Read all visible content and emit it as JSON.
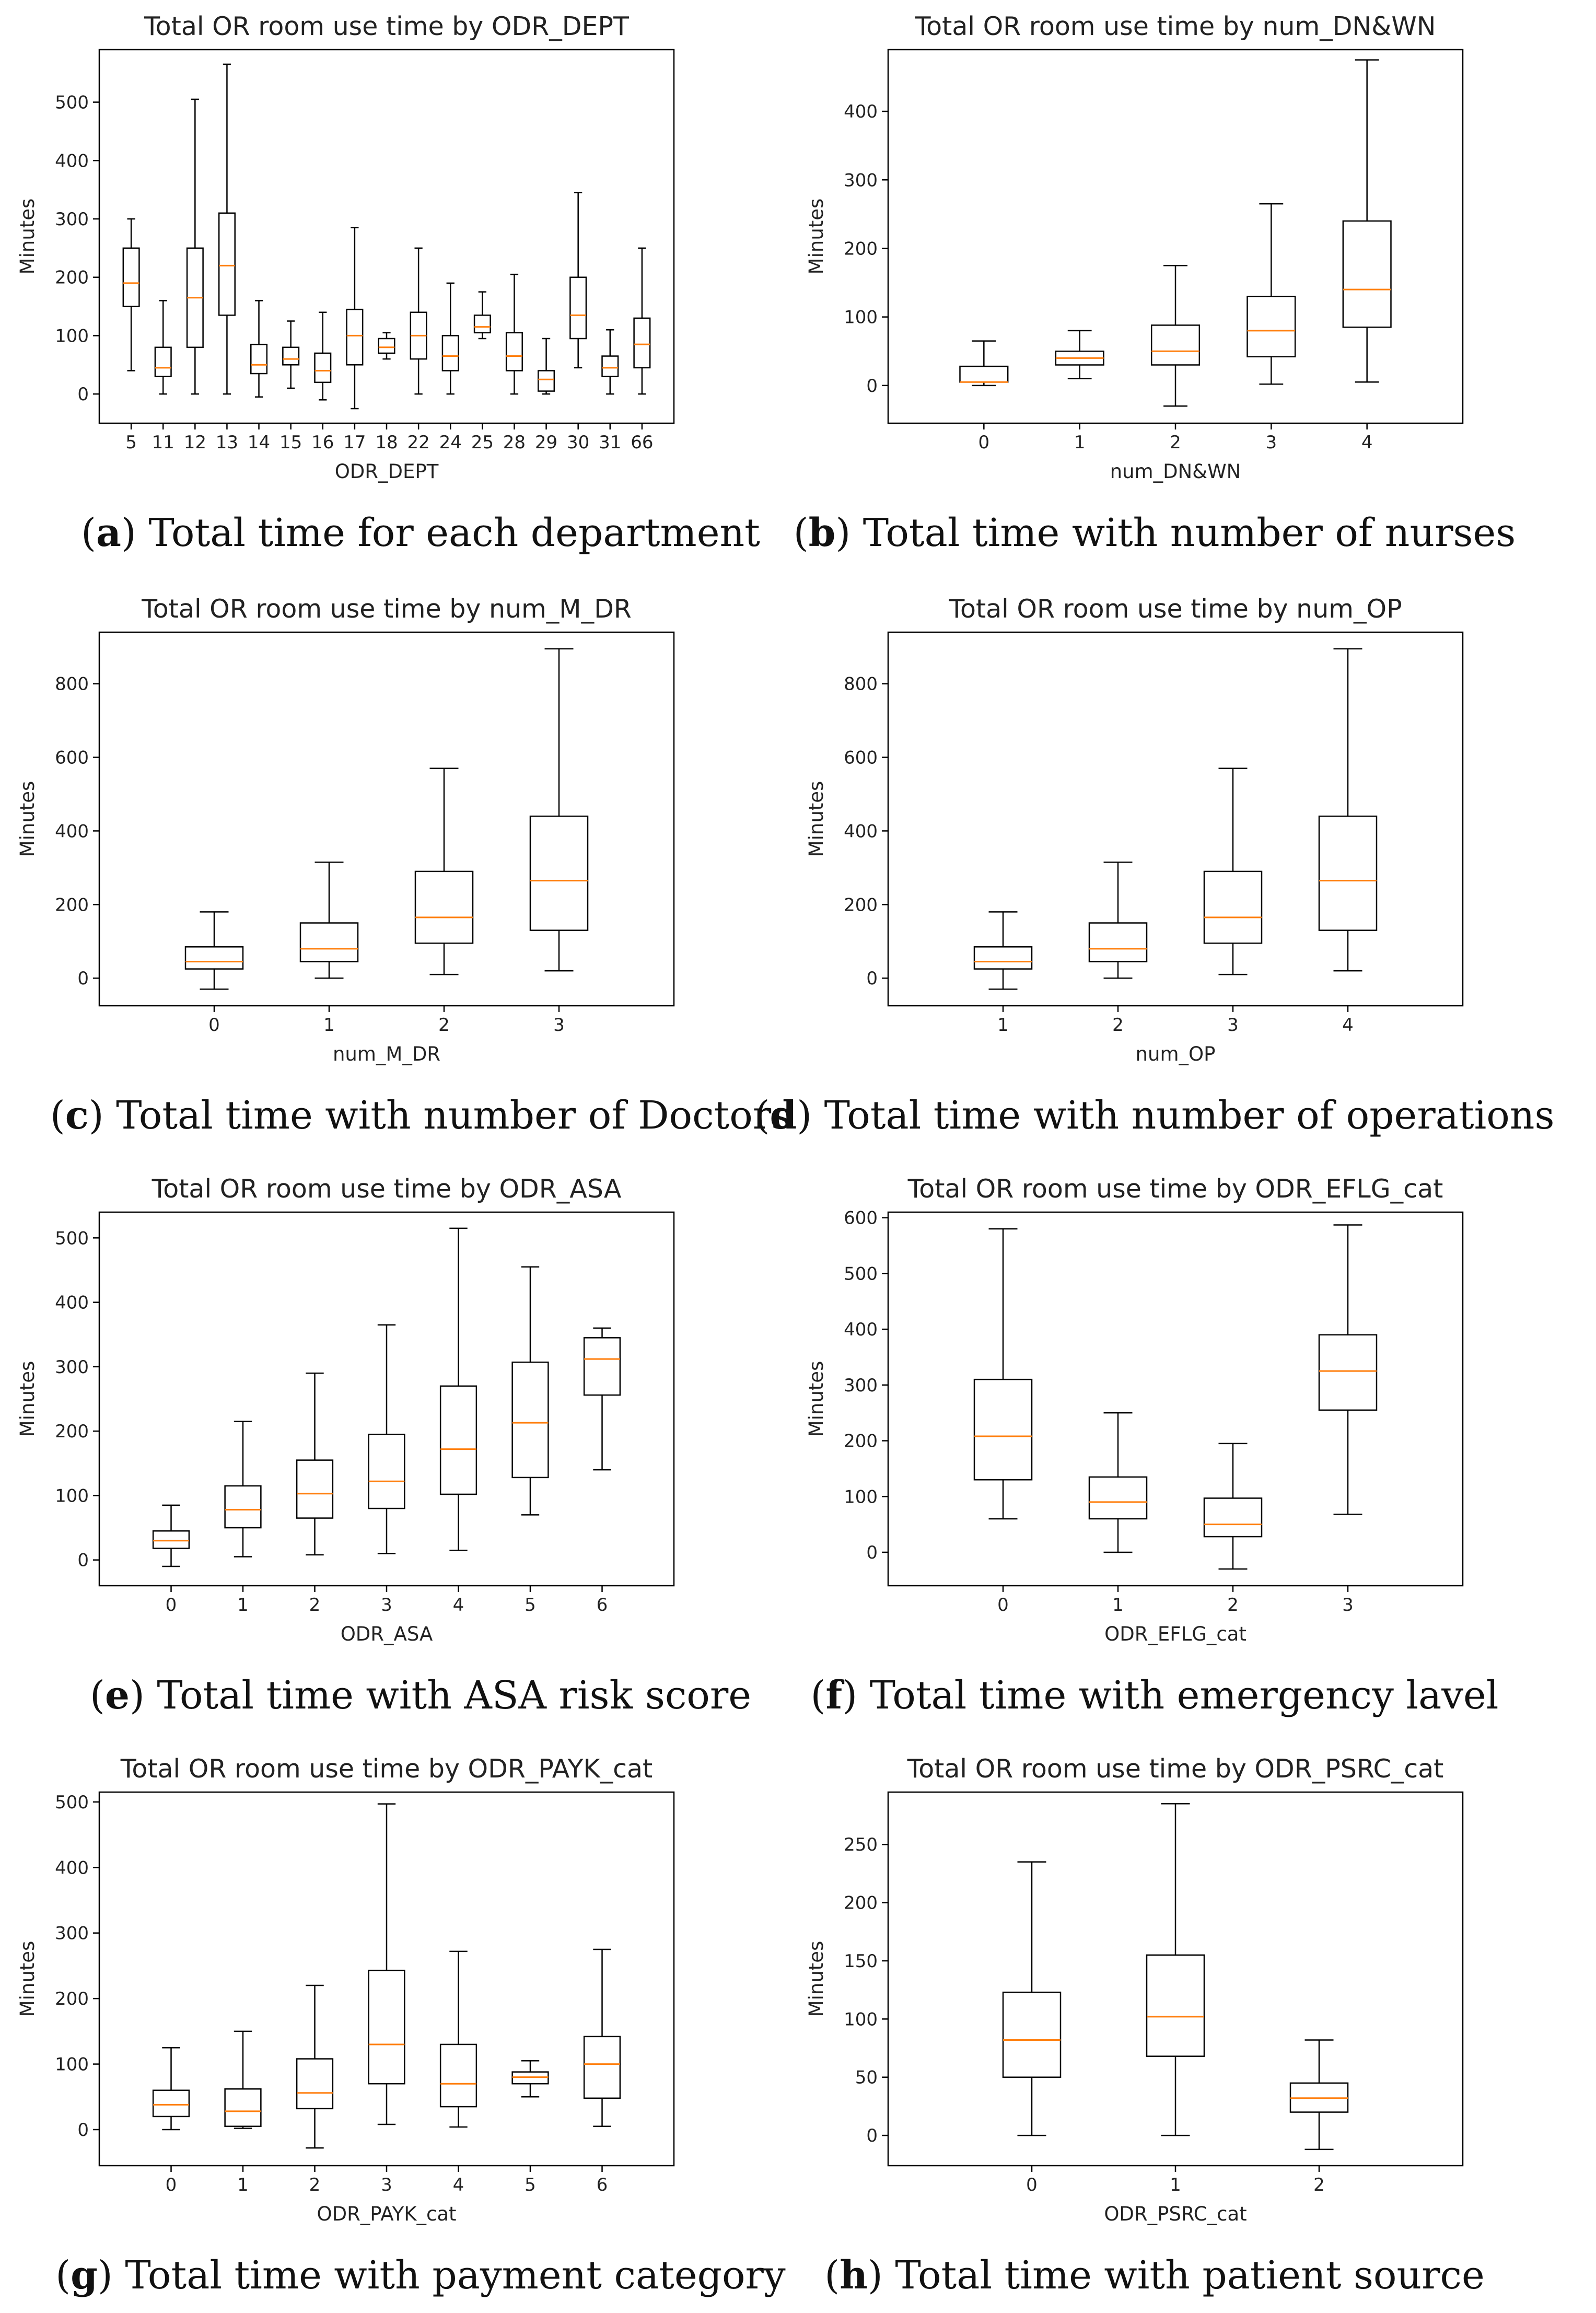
{
  "colors": {
    "box_line": "#000000",
    "median": "#ff7f0e",
    "frame": "#000000",
    "background": "#ffffff"
  },
  "chart_data": [
    {
      "id": "a",
      "type": "box",
      "title": "Total OR room use time by ODR_DEPT",
      "xlabel": "ODR_DEPT",
      "ylabel": "Minutes",
      "ylim": [
        -50,
        590
      ],
      "yticks": [
        0,
        100,
        200,
        300,
        400,
        500
      ],
      "categories": [
        "5",
        "11",
        "12",
        "13",
        "14",
        "15",
        "16",
        "17",
        "18",
        "22",
        "24",
        "25",
        "28",
        "29",
        "30",
        "31",
        "66"
      ],
      "boxes": [
        {
          "whisker_low": 40,
          "q1": 150,
          "median": 190,
          "q3": 250,
          "whisker_high": 300
        },
        {
          "whisker_low": 0,
          "q1": 30,
          "median": 45,
          "q3": 80,
          "whisker_high": 160
        },
        {
          "whisker_low": 0,
          "q1": 80,
          "median": 165,
          "q3": 250,
          "whisker_high": 505
        },
        {
          "whisker_low": 0,
          "q1": 135,
          "median": 220,
          "q3": 310,
          "whisker_high": 565
        },
        {
          "whisker_low": -5,
          "q1": 35,
          "median": 50,
          "q3": 85,
          "whisker_high": 160
        },
        {
          "whisker_low": 10,
          "q1": 50,
          "median": 60,
          "q3": 80,
          "whisker_high": 125
        },
        {
          "whisker_low": -10,
          "q1": 20,
          "median": 40,
          "q3": 70,
          "whisker_high": 140
        },
        {
          "whisker_low": -25,
          "q1": 50,
          "median": 100,
          "q3": 145,
          "whisker_high": 285
        },
        {
          "whisker_low": 60,
          "q1": 70,
          "median": 80,
          "q3": 95,
          "whisker_high": 105
        },
        {
          "whisker_low": 0,
          "q1": 60,
          "median": 100,
          "q3": 140,
          "whisker_high": 250
        },
        {
          "whisker_low": 0,
          "q1": 40,
          "median": 65,
          "q3": 100,
          "whisker_high": 190
        },
        {
          "whisker_low": 95,
          "q1": 105,
          "median": 115,
          "q3": 135,
          "whisker_high": 175
        },
        {
          "whisker_low": 0,
          "q1": 40,
          "median": 65,
          "q3": 105,
          "whisker_high": 205
        },
        {
          "whisker_low": 0,
          "q1": 5,
          "median": 25,
          "q3": 40,
          "whisker_high": 95
        },
        {
          "whisker_low": 45,
          "q1": 95,
          "median": 135,
          "q3": 200,
          "whisker_high": 345
        },
        {
          "whisker_low": 0,
          "q1": 30,
          "median": 45,
          "q3": 65,
          "whisker_high": 110
        },
        {
          "whisker_low": 0,
          "q1": 45,
          "median": 85,
          "q3": 130,
          "whisker_high": 250
        }
      ],
      "caption": {
        "letter": "a",
        "text": "Total time for each department"
      }
    },
    {
      "id": "b",
      "type": "box",
      "title": "Total OR room use time by num_DN&WN",
      "xlabel": "num_DN&WN",
      "ylabel": "Minutes",
      "ylim": [
        -55,
        490
      ],
      "yticks": [
        0,
        100,
        200,
        300,
        400
      ],
      "categories": [
        "0",
        "1",
        "2",
        "3",
        "4"
      ],
      "boxes": [
        {
          "whisker_low": 0,
          "q1": 5,
          "median": 5,
          "q3": 28,
          "whisker_high": 65
        },
        {
          "whisker_low": 10,
          "q1": 30,
          "median": 40,
          "q3": 50,
          "whisker_high": 80
        },
        {
          "whisker_low": -30,
          "q1": 30,
          "median": 50,
          "q3": 88,
          "whisker_high": 175
        },
        {
          "whisker_low": 2,
          "q1": 42,
          "median": 80,
          "q3": 130,
          "whisker_high": 265
        },
        {
          "whisker_low": 5,
          "q1": 85,
          "median": 140,
          "q3": 240,
          "whisker_high": 475
        }
      ],
      "caption": {
        "letter": "b",
        "text": "Total time with number of nurses"
      }
    },
    {
      "id": "c",
      "type": "box",
      "title": "Total OR room use time by num_M_DR",
      "xlabel": "num_M_DR",
      "ylabel": "Minutes",
      "ylim": [
        -75,
        940
      ],
      "yticks": [
        0,
        200,
        400,
        600,
        800
      ],
      "categories": [
        "0",
        "1",
        "2",
        "3"
      ],
      "boxes": [
        {
          "whisker_low": -30,
          "q1": 25,
          "median": 45,
          "q3": 85,
          "whisker_high": 180
        },
        {
          "whisker_low": 0,
          "q1": 45,
          "median": 80,
          "q3": 150,
          "whisker_high": 315
        },
        {
          "whisker_low": 10,
          "q1": 95,
          "median": 165,
          "q3": 290,
          "whisker_high": 570
        },
        {
          "whisker_low": 20,
          "q1": 130,
          "median": 265,
          "q3": 440,
          "whisker_high": 895
        }
      ],
      "caption": {
        "letter": "c",
        "text": "Total time with number of Doctors"
      }
    },
    {
      "id": "d",
      "type": "box",
      "title": "Total OR room use time by num_OP",
      "xlabel": "num_OP",
      "ylabel": "Minutes",
      "ylim": [
        -75,
        940
      ],
      "yticks": [
        0,
        200,
        400,
        600,
        800
      ],
      "categories": [
        "1",
        "2",
        "3",
        "4"
      ],
      "boxes": [
        {
          "whisker_low": -30,
          "q1": 25,
          "median": 45,
          "q3": 85,
          "whisker_high": 180
        },
        {
          "whisker_low": 0,
          "q1": 45,
          "median": 80,
          "q3": 150,
          "whisker_high": 315
        },
        {
          "whisker_low": 10,
          "q1": 95,
          "median": 165,
          "q3": 290,
          "whisker_high": 570
        },
        {
          "whisker_low": 20,
          "q1": 130,
          "median": 265,
          "q3": 440,
          "whisker_high": 895
        }
      ],
      "caption": {
        "letter": "d",
        "text": "Total time with number of operations"
      }
    },
    {
      "id": "e",
      "type": "box",
      "title": "Total OR room use time by ODR_ASA",
      "xlabel": "ODR_ASA",
      "ylabel": "Minutes",
      "ylim": [
        -40,
        540
      ],
      "yticks": [
        0,
        100,
        200,
        300,
        400,
        500
      ],
      "categories": [
        "0",
        "1",
        "2",
        "3",
        "4",
        "5",
        "6"
      ],
      "boxes": [
        {
          "whisker_low": -10,
          "q1": 18,
          "median": 30,
          "q3": 45,
          "whisker_high": 85
        },
        {
          "whisker_low": 5,
          "q1": 50,
          "median": 78,
          "q3": 115,
          "whisker_high": 215
        },
        {
          "whisker_low": 8,
          "q1": 65,
          "median": 103,
          "q3": 155,
          "whisker_high": 290
        },
        {
          "whisker_low": 10,
          "q1": 80,
          "median": 122,
          "q3": 195,
          "whisker_high": 365
        },
        {
          "whisker_low": 15,
          "q1": 102,
          "median": 172,
          "q3": 270,
          "whisker_high": 515
        },
        {
          "whisker_low": 70,
          "q1": 128,
          "median": 213,
          "q3": 307,
          "whisker_high": 455
        },
        {
          "whisker_low": 140,
          "q1": 256,
          "median": 312,
          "q3": 345,
          "whisker_high": 360
        }
      ],
      "caption": {
        "letter": "e",
        "text": "Total time with ASA risk score"
      }
    },
    {
      "id": "f",
      "type": "box",
      "title": "Total OR room use time by ODR_EFLG_cat",
      "xlabel": "ODR_EFLG_cat",
      "ylabel": "Minutes",
      "ylim": [
        -60,
        610
      ],
      "yticks": [
        0,
        100,
        200,
        300,
        400,
        500,
        600
      ],
      "categories": [
        "0",
        "1",
        "2",
        "3"
      ],
      "boxes": [
        {
          "whisker_low": 60,
          "q1": 130,
          "median": 208,
          "q3": 310,
          "whisker_high": 580
        },
        {
          "whisker_low": 0,
          "q1": 60,
          "median": 90,
          "q3": 135,
          "whisker_high": 250
        },
        {
          "whisker_low": -30,
          "q1": 28,
          "median": 50,
          "q3": 97,
          "whisker_high": 195
        },
        {
          "whisker_low": 68,
          "q1": 255,
          "median": 325,
          "q3": 390,
          "whisker_high": 587
        }
      ],
      "caption": {
        "letter": "f",
        "text": "Total time with emergency lavel"
      }
    },
    {
      "id": "g",
      "type": "box",
      "title": "Total OR room use time by ODR_PAYK_cat",
      "xlabel": "ODR_PAYK_cat",
      "ylabel": "Minutes",
      "ylim": [
        -55,
        515
      ],
      "yticks": [
        0,
        100,
        200,
        300,
        400,
        500
      ],
      "categories": [
        "0",
        "1",
        "2",
        "3",
        "4",
        "5",
        "6"
      ],
      "boxes": [
        {
          "whisker_low": 0,
          "q1": 20,
          "median": 38,
          "q3": 60,
          "whisker_high": 125
        },
        {
          "whisker_low": 2,
          "q1": 5,
          "median": 28,
          "q3": 62,
          "whisker_high": 150
        },
        {
          "whisker_low": -28,
          "q1": 32,
          "median": 56,
          "q3": 108,
          "whisker_high": 220
        },
        {
          "whisker_low": 8,
          "q1": 70,
          "median": 130,
          "q3": 243,
          "whisker_high": 497
        },
        {
          "whisker_low": 4,
          "q1": 35,
          "median": 70,
          "q3": 130,
          "whisker_high": 272
        },
        {
          "whisker_low": 50,
          "q1": 70,
          "median": 80,
          "q3": 88,
          "whisker_high": 105
        },
        {
          "whisker_low": 5,
          "q1": 48,
          "median": 100,
          "q3": 142,
          "whisker_high": 275
        }
      ],
      "caption": {
        "letter": "g",
        "text": "Total time with payment category"
      }
    },
    {
      "id": "h",
      "type": "box",
      "title": "Total OR room use time by ODR_PSRC_cat",
      "xlabel": "ODR_PSRC_cat",
      "ylabel": "Minutes",
      "ylim": [
        -26,
        295
      ],
      "yticks": [
        0,
        50,
        100,
        150,
        200,
        250
      ],
      "categories": [
        "0",
        "1",
        "2"
      ],
      "boxes": [
        {
          "whisker_low": 0,
          "q1": 50,
          "median": 82,
          "q3": 123,
          "whisker_high": 235
        },
        {
          "whisker_low": 0,
          "q1": 68,
          "median": 102,
          "q3": 155,
          "whisker_high": 285
        },
        {
          "whisker_low": -12,
          "q1": 20,
          "median": 32,
          "q3": 45,
          "whisker_high": 82
        }
      ],
      "caption": {
        "letter": "h",
        "text": "Total time with patient source"
      }
    }
  ]
}
